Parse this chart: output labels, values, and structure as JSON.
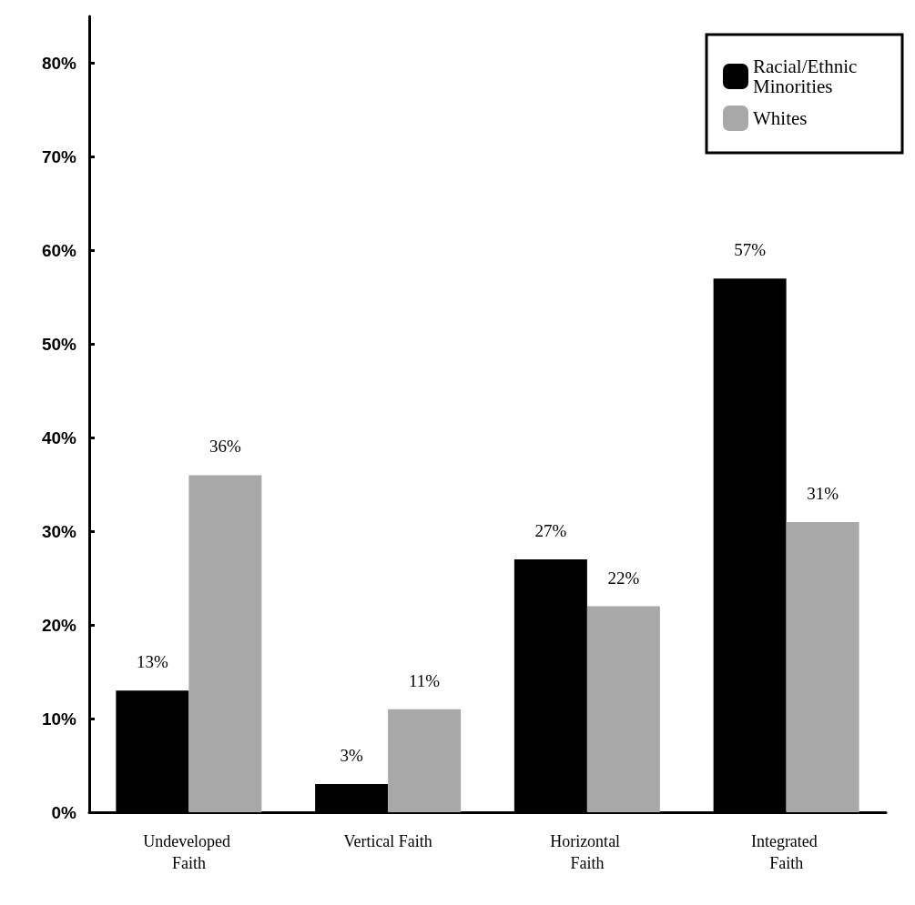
{
  "chart_data": {
    "type": "bar",
    "categories": [
      "Undeveloped Faith",
      "Vertical Faith",
      "Horizontal Faith",
      "Integrated Faith"
    ],
    "series": [
      {
        "name": "Racial/Ethnic Minorities",
        "color": "#000000",
        "values": [
          13,
          3,
          27,
          57
        ],
        "value_labels": [
          "13%",
          "3%",
          "27%",
          "57%"
        ]
      },
      {
        "name": "Whites",
        "color": "#a8a8a8",
        "values": [
          36,
          11,
          22,
          31
        ],
        "value_labels": [
          "36%",
          "11%",
          "22%",
          "31%"
        ]
      }
    ],
    "ylim": [
      0,
      85
    ],
    "yticks": [
      {
        "value": 0,
        "label": "0%"
      },
      {
        "value": 10,
        "label": "10%"
      },
      {
        "value": 20,
        "label": "20%"
      },
      {
        "value": 30,
        "label": "30%"
      },
      {
        "value": 40,
        "label": "40%"
      },
      {
        "value": 50,
        "label": "50%"
      },
      {
        "value": 60,
        "label": "60%"
      },
      {
        "value": 70,
        "label": "70%"
      },
      {
        "value": 80,
        "label": "80%"
      }
    ],
    "legend": "top right"
  }
}
